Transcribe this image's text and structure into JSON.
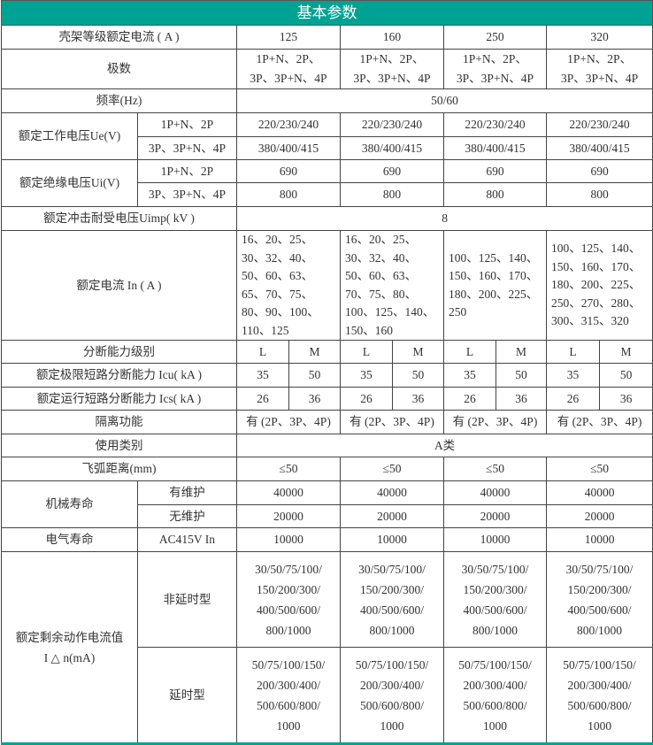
{
  "title": "基本参数",
  "colors": {
    "header_bg": "#00a393",
    "header_text": "#ffffff",
    "text": "#333333"
  },
  "rows": [
    {
      "type": "values",
      "label": "壳架等级额定电流 ( A )",
      "values": [
        "125",
        "160",
        "250",
        "320"
      ]
    },
    {
      "type": "values",
      "label": "极数",
      "values": [
        "1P+N、2P、\n3P、3P+N、4P",
        "1P+N、2P、\n3P、3P+N、4P",
        "1P+N、2P、\n3P、3P+N、4P",
        "1P+N、2P、\n3P、3P+N、4P"
      ]
    },
    {
      "type": "span",
      "label": "频率(Hz)",
      "value": "50/60"
    },
    {
      "type": "group",
      "label": "额定工作电压Ue(V)",
      "subrows": [
        {
          "sub": "1P+N、2P",
          "values": [
            "220/230/240",
            "220/230/240",
            "220/230/240",
            "220/230/240"
          ]
        },
        {
          "sub": "3P、3P+N、4P",
          "values": [
            "380/400/415",
            "380/400/415",
            "380/400/415",
            "380/400/415"
          ]
        }
      ]
    },
    {
      "type": "group",
      "label": "额定绝缘电压Ui(V)",
      "subrows": [
        {
          "sub": "1P+N、2P",
          "values": [
            "690",
            "690",
            "690",
            "690"
          ]
        },
        {
          "sub": "3P、3P+N、4P",
          "values": [
            "800",
            "800",
            "800",
            "800"
          ]
        }
      ]
    },
    {
      "type": "span",
      "label": "额定冲击耐受电压Uimp( kV )",
      "value": "8"
    },
    {
      "type": "values",
      "left": true,
      "label": "额定电流 In ( A )",
      "values": [
        "16、20、25、\n30、32、40、\n50、60、63、\n65、70、75、\n80、90、100、\n110、125",
        "16、20、25、\n30、32、40、\n50、60、63、\n70、75、80、\n100、125、140、\n150、160",
        "100、125、140、\n150、160、170、\n180、200、225、\n250",
        "100、125、140、\n150、160、170、\n180、200、225、\n250、270、280、\n300、315、320"
      ]
    },
    {
      "type": "pairs",
      "label": "分断能力级别",
      "values": [
        "L",
        "M",
        "L",
        "M",
        "L",
        "M",
        "L",
        "M"
      ]
    },
    {
      "type": "pairs",
      "label": "额定极限短路分断能力 Icu( kA )",
      "values": [
        "35",
        "50",
        "35",
        "50",
        "35",
        "50",
        "35",
        "50"
      ]
    },
    {
      "type": "pairs",
      "label": "额定运行短路分断能力 Ics( kA )",
      "values": [
        "26",
        "36",
        "26",
        "36",
        "26",
        "36",
        "26",
        "36"
      ]
    },
    {
      "type": "values",
      "label": "隔离功能",
      "values": [
        "有 (2P、3P、4P)",
        "有 (2P、3P、4P)",
        "有 (2P、3P、4P)",
        "有 (2P、3P、4P)"
      ]
    },
    {
      "type": "span",
      "label": "使用类别",
      "value": "A类"
    },
    {
      "type": "values",
      "label": "飞弧距离(mm)",
      "values": [
        "≤50",
        "≤50",
        "≤50",
        "≤50"
      ]
    },
    {
      "type": "group",
      "label": "机械寿命",
      "subrows": [
        {
          "sub": "有维护",
          "values": [
            "40000",
            "40000",
            "40000",
            "40000"
          ]
        },
        {
          "sub": "无维护",
          "values": [
            "20000",
            "20000",
            "20000",
            "20000"
          ]
        }
      ]
    },
    {
      "type": "group",
      "label": "电气寿命",
      "subrows": [
        {
          "sub": "AC415V In",
          "values": [
            "10000",
            "10000",
            "10000",
            "10000"
          ]
        }
      ]
    },
    {
      "type": "group",
      "multi": true,
      "label": "额定剩余动作电流值\nI △ n(mA)",
      "subrows": [
        {
          "sub": "非延时型",
          "values": [
            "30/50/75/100/\n150/200/300/\n400/500/600/\n800/1000",
            "30/50/75/100/\n150/200/300/\n400/500/600/\n800/1000",
            "30/50/75/100/\n150/200/300/\n400/500/600/\n800/1000",
            "30/50/75/100/\n150/200/300/\n400/500/600/\n800/1000"
          ]
        },
        {
          "sub": "延时型",
          "values": [
            "50/75/100/150/\n200/300/400/\n500/600/800/\n1000",
            "50/75/100/150/\n200/300/400/\n500/600/800/\n1000",
            "50/75/100/150/\n200/300/400/\n500/600/800/\n1000",
            "50/75/100/150/\n200/300/400/\n500/600/800/\n1000"
          ]
        }
      ]
    }
  ]
}
